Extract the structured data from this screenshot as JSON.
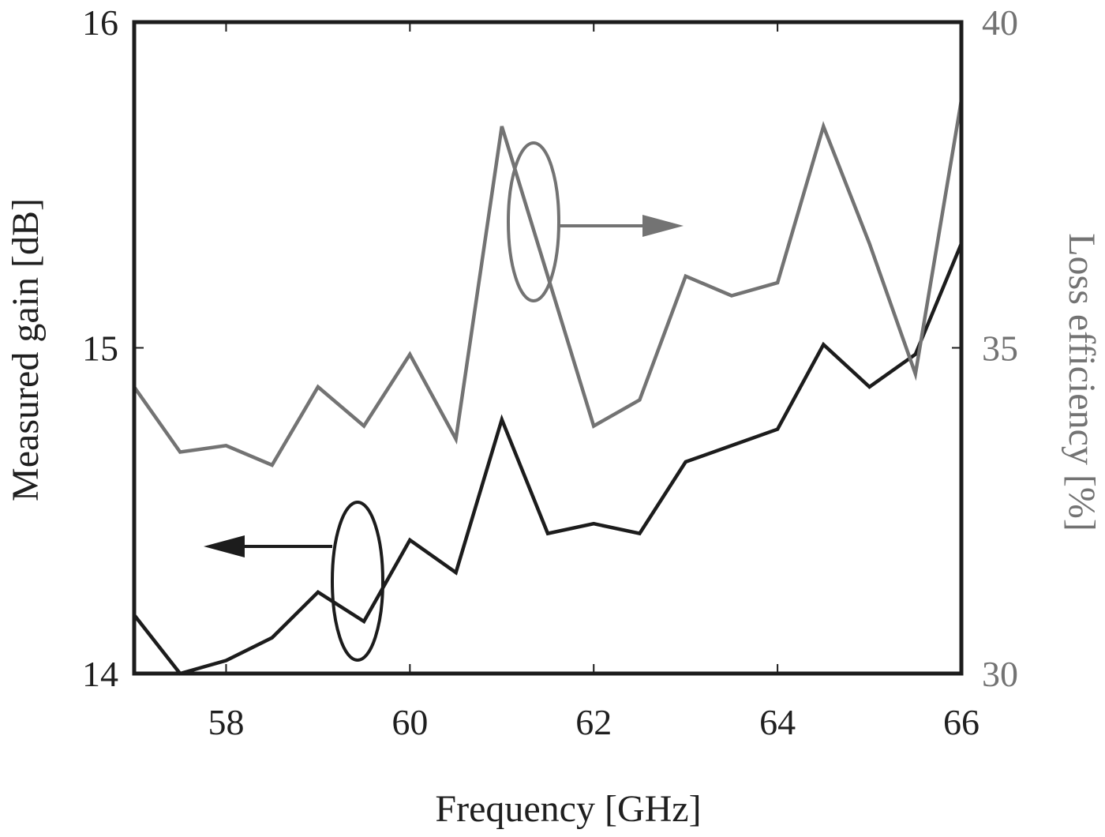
{
  "chart_data": {
    "type": "line",
    "x": [
      57,
      57.5,
      58,
      58.5,
      59,
      59.5,
      60,
      60.5,
      61,
      61.5,
      62,
      62.5,
      63,
      63.5,
      64,
      64.5,
      65,
      65.5,
      66
    ],
    "series": [
      {
        "axis": "left",
        "color": "#1c1c1c",
        "values": [
          14.18,
          14.0,
          14.04,
          14.11,
          14.25,
          14.16,
          14.41,
          14.31,
          14.78,
          14.43,
          14.46,
          14.43,
          14.65,
          14.7,
          14.75,
          15.01,
          14.88,
          14.98,
          15.32
        ]
      },
      {
        "axis": "right",
        "color": "#737373",
        "values": [
          34.4,
          33.4,
          33.5,
          33.2,
          34.4,
          33.8,
          34.9,
          33.6,
          38.4,
          36.1,
          33.8,
          34.2,
          36.1,
          35.8,
          36.0,
          38.4,
          36.6,
          34.6,
          38.8
        ]
      }
    ],
    "xlabel": "Frequency [GHz]",
    "ylabel": "Measured gain [dB]",
    "y2label": "Loss efficiency [%]",
    "xlim": [
      57,
      66
    ],
    "ylim": [
      14,
      16
    ],
    "y2lim": [
      30,
      40
    ],
    "xticks": [
      "58",
      "60",
      "62",
      "64",
      "66"
    ],
    "yticks": [
      "14",
      "15",
      "16"
    ],
    "y2ticks": [
      "30",
      "35",
      "40"
    ],
    "grid": false,
    "colors": {
      "left_axis": "#1c1c1c",
      "right_axis": "#737373"
    },
    "annotations": [
      {
        "type": "ellipse-arrow",
        "series": "left",
        "arrow_direction": "left"
      },
      {
        "type": "ellipse-arrow",
        "series": "right",
        "arrow_direction": "right"
      }
    ]
  }
}
